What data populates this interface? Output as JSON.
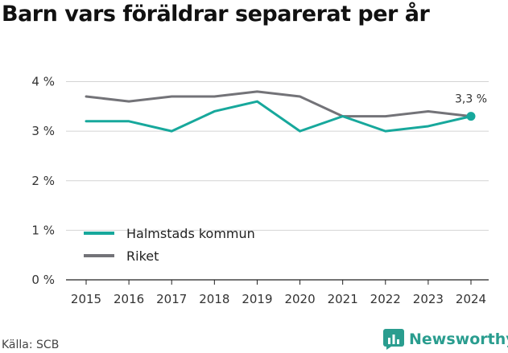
{
  "chart_data": {
    "type": "line",
    "title": "Barn vars föräldrar separerat per år",
    "categories": [
      "2015",
      "2016",
      "2017",
      "2018",
      "2019",
      "2020",
      "2021",
      "2022",
      "2023",
      "2024"
    ],
    "y_ticks": [
      0,
      1,
      2,
      3,
      4
    ],
    "y_tick_suffix": " %",
    "ylim": [
      0,
      4.2
    ],
    "grid": "horizontal",
    "legend_position": "lower-left",
    "series": [
      {
        "name": "Halmstads kommun",
        "color": "#17a89c",
        "values": [
          3.2,
          3.2,
          3.0,
          3.4,
          3.6,
          3.0,
          3.3,
          3.0,
          3.1,
          3.3
        ]
      },
      {
        "name": "Riket",
        "color": "#737378",
        "values": [
          3.7,
          3.6,
          3.7,
          3.7,
          3.8,
          3.7,
          3.3,
          3.3,
          3.4,
          3.3
        ]
      }
    ],
    "annotation": {
      "text": "3,3 %",
      "series": "Halmstads kommun",
      "category": "2024"
    }
  },
  "source": "Källa: SCB",
  "brand": "Newsworthy",
  "brand_icon": "bar-chart-logo-icon"
}
